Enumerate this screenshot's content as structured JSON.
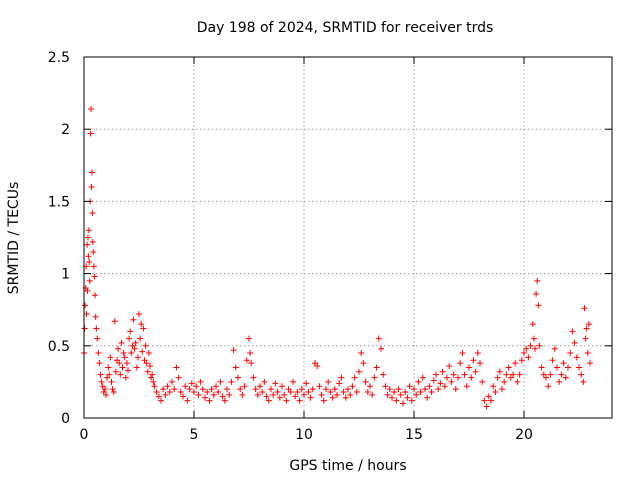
{
  "chart_data": {
    "type": "scatter",
    "title": "Day 198 of 2024, SRMTID for receiver trds",
    "xlabel": "GPS time / hours",
    "ylabel": "SRMTID / TECUs",
    "xlim": [
      0,
      24
    ],
    "ylim": [
      0,
      2.5
    ],
    "xticks": [
      0,
      5,
      10,
      15,
      20
    ],
    "xtick_labels": [
      "0",
      "5",
      "10",
      "15",
      "20"
    ],
    "yticks": [
      0,
      0.5,
      1,
      1.5,
      2,
      2.5
    ],
    "ytick_labels": [
      "0",
      "0.5",
      "1",
      "1.5",
      "2",
      "2.5"
    ],
    "grid": true,
    "marker": "plus",
    "color": "#ff0000",
    "series": [
      {
        "name": "SRMTID",
        "points": [
          [
            0.0,
            0.45
          ],
          [
            0.03,
            0.62
          ],
          [
            0.05,
            0.78
          ],
          [
            0.08,
            0.9
          ],
          [
            0.1,
            1.05
          ],
          [
            0.12,
            0.72
          ],
          [
            0.14,
            1.2
          ],
          [
            0.16,
            0.88
          ],
          [
            0.18,
            1.25
          ],
          [
            0.2,
            1.12
          ],
          [
            0.22,
            1.3
          ],
          [
            0.24,
            1.08
          ],
          [
            0.26,
            0.95
          ],
          [
            0.28,
            1.5
          ],
          [
            0.3,
            1.97
          ],
          [
            0.32,
            2.14
          ],
          [
            0.34,
            1.6
          ],
          [
            0.36,
            1.7
          ],
          [
            0.38,
            1.42
          ],
          [
            0.4,
            1.22
          ],
          [
            0.42,
            1.15
          ],
          [
            0.45,
            1.05
          ],
          [
            0.48,
            0.98
          ],
          [
            0.5,
            0.85
          ],
          [
            0.53,
            0.7
          ],
          [
            0.56,
            0.62
          ],
          [
            0.6,
            0.55
          ],
          [
            0.65,
            0.45
          ],
          [
            0.7,
            0.38
          ],
          [
            0.75,
            0.3
          ],
          [
            0.8,
            0.25
          ],
          [
            0.85,
            0.22
          ],
          [
            0.9,
            0.18
          ],
          [
            0.95,
            0.2
          ],
          [
            1.0,
            0.16
          ],
          [
            1.05,
            0.28
          ],
          [
            1.1,
            0.35
          ],
          [
            1.15,
            0.3
          ],
          [
            1.2,
            0.42
          ],
          [
            1.25,
            0.25
          ],
          [
            1.3,
            0.2
          ],
          [
            1.35,
            0.18
          ],
          [
            1.4,
            0.67
          ],
          [
            1.45,
            0.32
          ],
          [
            1.5,
            0.4
          ],
          [
            1.55,
            0.48
          ],
          [
            1.6,
            0.38
          ],
          [
            1.65,
            0.3
          ],
          [
            1.7,
            0.52
          ],
          [
            1.75,
            0.35
          ],
          [
            1.8,
            0.45
          ],
          [
            1.85,
            0.42
          ],
          [
            1.9,
            0.28
          ],
          [
            1.95,
            0.38
          ],
          [
            2.0,
            0.33
          ],
          [
            2.05,
            0.55
          ],
          [
            2.1,
            0.6
          ],
          [
            2.15,
            0.45
          ],
          [
            2.2,
            0.5
          ],
          [
            2.25,
            0.68
          ],
          [
            2.3,
            0.48
          ],
          [
            2.35,
            0.52
          ],
          [
            2.4,
            0.35
          ],
          [
            2.45,
            0.42
          ],
          [
            2.5,
            0.72
          ],
          [
            2.55,
            0.55
          ],
          [
            2.6,
            0.65
          ],
          [
            2.65,
            0.46
          ],
          [
            2.7,
            0.62
          ],
          [
            2.75,
            0.4
          ],
          [
            2.8,
            0.5
          ],
          [
            2.85,
            0.38
          ],
          [
            2.9,
            0.32
          ],
          [
            2.95,
            0.45
          ],
          [
            3.0,
            0.36
          ],
          [
            3.05,
            0.28
          ],
          [
            3.1,
            0.3
          ],
          [
            3.15,
            0.25
          ],
          [
            3.2,
            0.22
          ],
          [
            3.3,
            0.18
          ],
          [
            3.4,
            0.15
          ],
          [
            3.5,
            0.12
          ],
          [
            3.6,
            0.2
          ],
          [
            3.7,
            0.16
          ],
          [
            3.8,
            0.22
          ],
          [
            3.9,
            0.18
          ],
          [
            4.0,
            0.25
          ],
          [
            4.1,
            0.2
          ],
          [
            4.2,
            0.35
          ],
          [
            4.3,
            0.28
          ],
          [
            4.4,
            0.18
          ],
          [
            4.5,
            0.15
          ],
          [
            4.6,
            0.22
          ],
          [
            4.7,
            0.12
          ],
          [
            4.8,
            0.2
          ],
          [
            4.9,
            0.24
          ],
          [
            5.0,
            0.18
          ],
          [
            5.1,
            0.22
          ],
          [
            5.2,
            0.16
          ],
          [
            5.3,
            0.25
          ],
          [
            5.4,
            0.2
          ],
          [
            5.5,
            0.14
          ],
          [
            5.6,
            0.18
          ],
          [
            5.7,
            0.12
          ],
          [
            5.8,
            0.2
          ],
          [
            5.9,
            0.16
          ],
          [
            6.0,
            0.22
          ],
          [
            6.1,
            0.18
          ],
          [
            6.2,
            0.25
          ],
          [
            6.3,
            0.15
          ],
          [
            6.4,
            0.12
          ],
          [
            6.5,
            0.2
          ],
          [
            6.6,
            0.16
          ],
          [
            6.7,
            0.25
          ],
          [
            6.8,
            0.47
          ],
          [
            6.9,
            0.35
          ],
          [
            7.0,
            0.28
          ],
          [
            7.1,
            0.2
          ],
          [
            7.2,
            0.16
          ],
          [
            7.3,
            0.22
          ],
          [
            7.4,
            0.4
          ],
          [
            7.5,
            0.55
          ],
          [
            7.55,
            0.45
          ],
          [
            7.6,
            0.38
          ],
          [
            7.7,
            0.28
          ],
          [
            7.8,
            0.2
          ],
          [
            7.9,
            0.16
          ],
          [
            8.0,
            0.22
          ],
          [
            8.1,
            0.18
          ],
          [
            8.2,
            0.25
          ],
          [
            8.3,
            0.15
          ],
          [
            8.4,
            0.12
          ],
          [
            8.5,
            0.2
          ],
          [
            8.6,
            0.16
          ],
          [
            8.7,
            0.24
          ],
          [
            8.8,
            0.18
          ],
          [
            8.9,
            0.14
          ],
          [
            9.0,
            0.22
          ],
          [
            9.1,
            0.16
          ],
          [
            9.2,
            0.12
          ],
          [
            9.3,
            0.2
          ],
          [
            9.4,
            0.18
          ],
          [
            9.5,
            0.25
          ],
          [
            9.6,
            0.15
          ],
          [
            9.7,
            0.18
          ],
          [
            9.8,
            0.12
          ],
          [
            9.9,
            0.2
          ],
          [
            10.0,
            0.16
          ],
          [
            10.1,
            0.24
          ],
          [
            10.2,
            0.18
          ],
          [
            10.3,
            0.14
          ],
          [
            10.4,
            0.2
          ],
          [
            10.5,
            0.38
          ],
          [
            10.6,
            0.36
          ],
          [
            10.7,
            0.22
          ],
          [
            10.8,
            0.16
          ],
          [
            10.9,
            0.12
          ],
          [
            11.0,
            0.2
          ],
          [
            11.1,
            0.25
          ],
          [
            11.2,
            0.18
          ],
          [
            11.3,
            0.14
          ],
          [
            11.4,
            0.2
          ],
          [
            11.5,
            0.16
          ],
          [
            11.6,
            0.24
          ],
          [
            11.7,
            0.28
          ],
          [
            11.8,
            0.18
          ],
          [
            11.9,
            0.14
          ],
          [
            12.0,
            0.2
          ],
          [
            12.1,
            0.16
          ],
          [
            12.2,
            0.22
          ],
          [
            12.3,
            0.28
          ],
          [
            12.4,
            0.18
          ],
          [
            12.5,
            0.32
          ],
          [
            12.6,
            0.45
          ],
          [
            12.7,
            0.38
          ],
          [
            12.8,
            0.25
          ],
          [
            12.9,
            0.18
          ],
          [
            13.0,
            0.22
          ],
          [
            13.1,
            0.16
          ],
          [
            13.2,
            0.28
          ],
          [
            13.3,
            0.35
          ],
          [
            13.4,
            0.55
          ],
          [
            13.5,
            0.48
          ],
          [
            13.6,
            0.3
          ],
          [
            13.7,
            0.22
          ],
          [
            13.8,
            0.16
          ],
          [
            13.9,
            0.2
          ],
          [
            14.0,
            0.14
          ],
          [
            14.1,
            0.18
          ],
          [
            14.2,
            0.12
          ],
          [
            14.3,
            0.2
          ],
          [
            14.4,
            0.16
          ],
          [
            14.5,
            0.1
          ],
          [
            14.6,
            0.18
          ],
          [
            14.7,
            0.14
          ],
          [
            14.8,
            0.22
          ],
          [
            14.9,
            0.12
          ],
          [
            15.0,
            0.2
          ],
          [
            15.1,
            0.16
          ],
          [
            15.2,
            0.25
          ],
          [
            15.3,
            0.18
          ],
          [
            15.4,
            0.28
          ],
          [
            15.5,
            0.2
          ],
          [
            15.6,
            0.14
          ],
          [
            15.7,
            0.22
          ],
          [
            15.8,
            0.18
          ],
          [
            15.9,
            0.26
          ],
          [
            16.0,
            0.3
          ],
          [
            16.1,
            0.2
          ],
          [
            16.2,
            0.24
          ],
          [
            16.3,
            0.32
          ],
          [
            16.4,
            0.22
          ],
          [
            16.5,
            0.28
          ],
          [
            16.6,
            0.36
          ],
          [
            16.7,
            0.25
          ],
          [
            16.8,
            0.3
          ],
          [
            16.9,
            0.2
          ],
          [
            17.0,
            0.28
          ],
          [
            17.1,
            0.38
          ],
          [
            17.2,
            0.45
          ],
          [
            17.3,
            0.3
          ],
          [
            17.4,
            0.22
          ],
          [
            17.5,
            0.35
          ],
          [
            17.6,
            0.28
          ],
          [
            17.7,
            0.4
          ],
          [
            17.8,
            0.32
          ],
          [
            17.9,
            0.45
          ],
          [
            18.0,
            0.38
          ],
          [
            18.1,
            0.25
          ],
          [
            18.2,
            0.12
          ],
          [
            18.3,
            0.08
          ],
          [
            18.4,
            0.15
          ],
          [
            18.5,
            0.12
          ],
          [
            18.6,
            0.22
          ],
          [
            18.7,
            0.18
          ],
          [
            18.8,
            0.28
          ],
          [
            18.9,
            0.32
          ],
          [
            19.0,
            0.2
          ],
          [
            19.1,
            0.25
          ],
          [
            19.2,
            0.3
          ],
          [
            19.3,
            0.35
          ],
          [
            19.4,
            0.28
          ],
          [
            19.5,
            0.3
          ],
          [
            19.6,
            0.38
          ],
          [
            19.7,
            0.25
          ],
          [
            19.8,
            0.3
          ],
          [
            19.9,
            0.4
          ],
          [
            20.0,
            0.45
          ],
          [
            20.1,
            0.48
          ],
          [
            20.2,
            0.42
          ],
          [
            20.3,
            0.5
          ],
          [
            20.4,
            0.65
          ],
          [
            20.45,
            0.55
          ],
          [
            20.5,
            0.48
          ],
          [
            20.55,
            0.86
          ],
          [
            20.6,
            0.95
          ],
          [
            20.65,
            0.78
          ],
          [
            20.7,
            0.5
          ],
          [
            20.8,
            0.35
          ],
          [
            20.9,
            0.3
          ],
          [
            21.0,
            0.28
          ],
          [
            21.1,
            0.22
          ],
          [
            21.2,
            0.3
          ],
          [
            21.3,
            0.4
          ],
          [
            21.4,
            0.48
          ],
          [
            21.5,
            0.35
          ],
          [
            21.6,
            0.25
          ],
          [
            21.7,
            0.3
          ],
          [
            21.8,
            0.38
          ],
          [
            21.9,
            0.28
          ],
          [
            22.0,
            0.35
          ],
          [
            22.1,
            0.45
          ],
          [
            22.2,
            0.6
          ],
          [
            22.3,
            0.52
          ],
          [
            22.4,
            0.42
          ],
          [
            22.5,
            0.35
          ],
          [
            22.6,
            0.3
          ],
          [
            22.7,
            0.25
          ],
          [
            22.75,
            0.76
          ],
          [
            22.8,
            0.55
          ],
          [
            22.85,
            0.62
          ],
          [
            22.9,
            0.45
          ],
          [
            22.95,
            0.65
          ],
          [
            23.0,
            0.38
          ]
        ]
      }
    ]
  }
}
